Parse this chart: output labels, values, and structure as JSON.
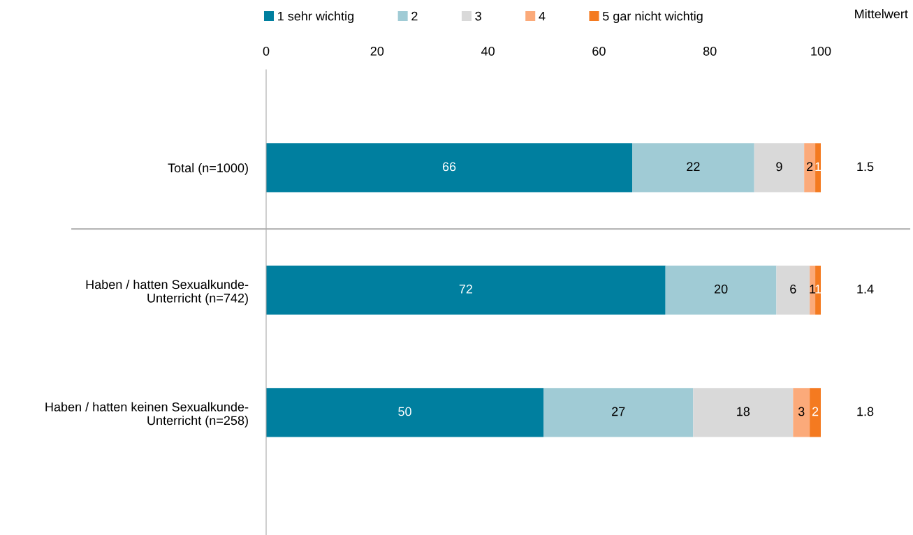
{
  "chart_data": {
    "type": "bar",
    "orientation": "horizontal",
    "stacked": true,
    "data_labels": true,
    "legend": "top",
    "grid": false,
    "categories": [
      "Total (n=1000)",
      "Haben / hatten Sexualkunde-\nUnterricht (n=742)",
      "Haben / hatten keinen Sexualkunde-\nUnterricht (n=258)"
    ],
    "series": [
      {
        "name": "1 sehr wichtig",
        "color": "#007f9f",
        "values": [
          66,
          72,
          50
        ]
      },
      {
        "name": "2",
        "color": "#a0cbd5",
        "values": [
          22,
          20,
          27
        ]
      },
      {
        "name": "3",
        "color": "#d9d9d9",
        "values": [
          9,
          6,
          18
        ]
      },
      {
        "name": "4",
        "color": "#fbaa7a",
        "values": [
          2,
          1,
          3
        ]
      },
      {
        "name": "5 gar nicht wichtig",
        "color": "#f47a20",
        "values": [
          1,
          1,
          2
        ]
      }
    ],
    "xlim": [
      0,
      100
    ],
    "xticks": [
      0,
      20,
      40,
      60,
      80,
      100
    ],
    "annotations": [
      "Mittelwert",
      "1.5",
      "1.4",
      "1.8"
    ]
  }
}
